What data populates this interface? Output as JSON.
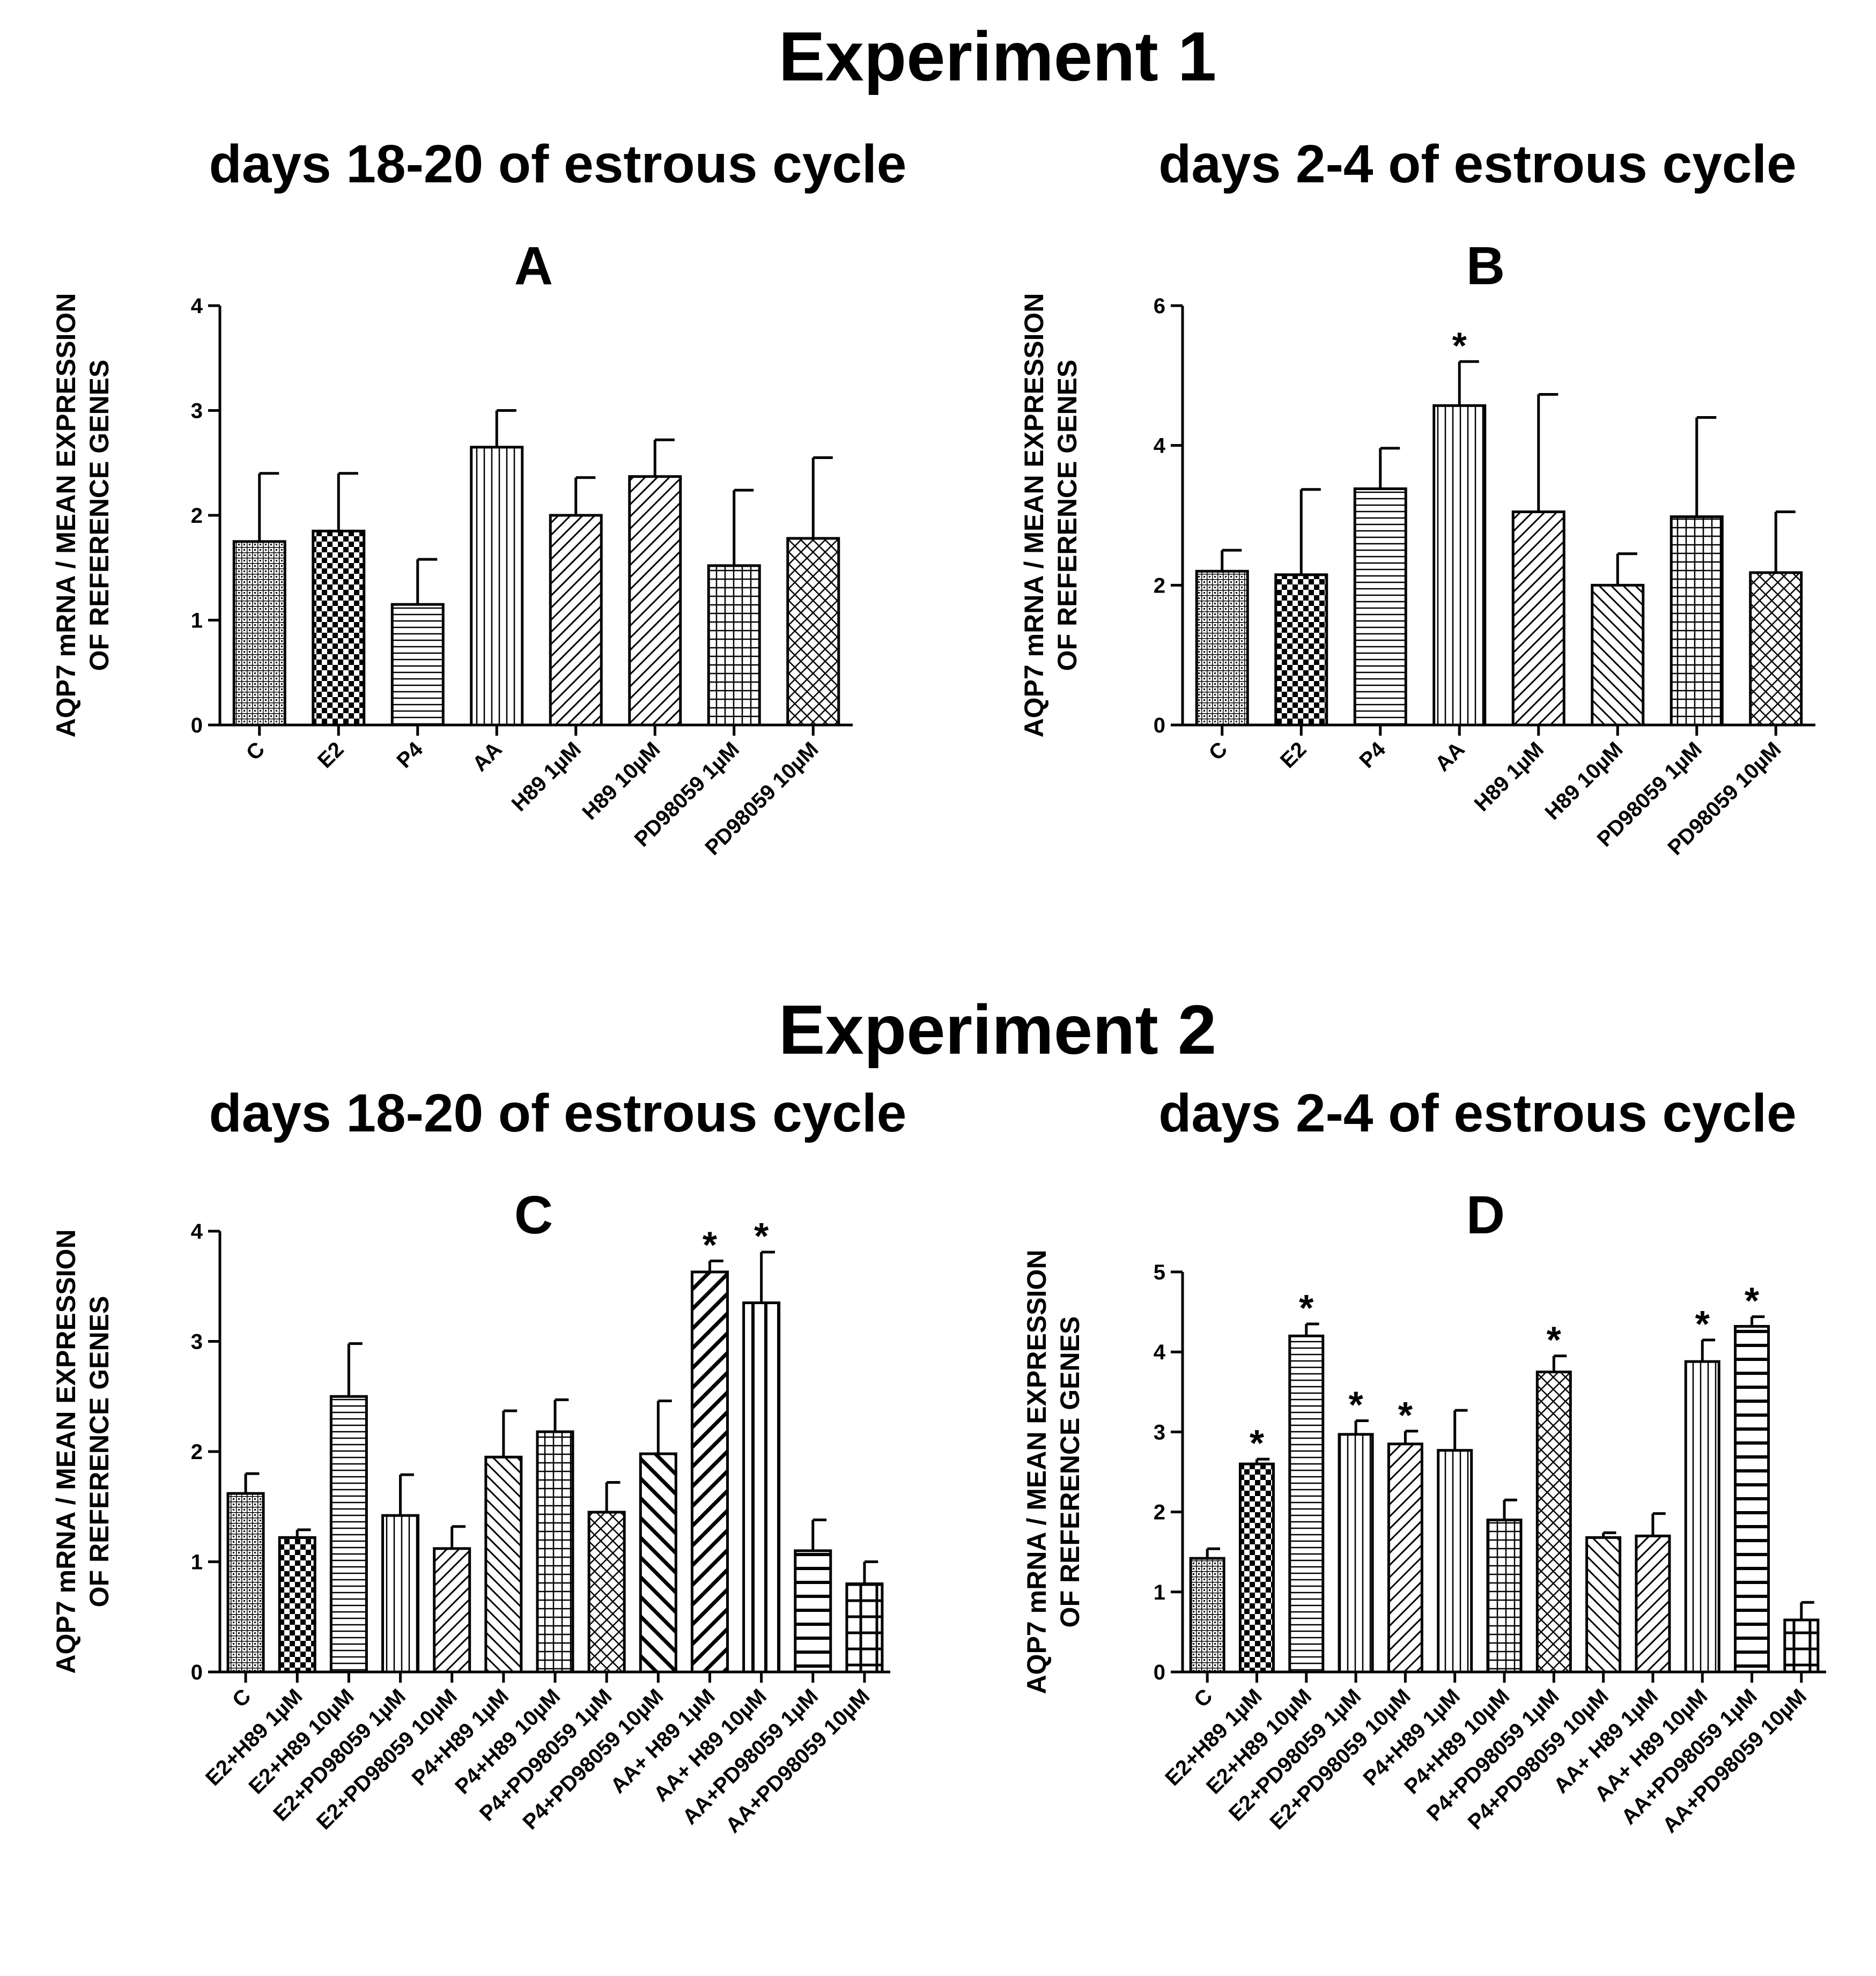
{
  "figure": {
    "experiments": [
      {
        "title": "Experiment 1",
        "phase_titles": [
          "days 18-20 of estrous cycle",
          "days 2-4 of estrous cycle"
        ]
      },
      {
        "title": "Experiment 2",
        "phase_titles": [
          "days 18-20 of estrous cycle",
          "days 2-4 of estrous cycle"
        ]
      }
    ]
  },
  "chart_data": [
    {
      "type": "bar",
      "title": "A",
      "ylabel": [
        "AQP7 mRNA / MEAN EXPRESSION",
        "OF REFERENCE GENES"
      ],
      "ylim": [
        0,
        4
      ],
      "yticks": [
        0,
        1,
        2,
        3,
        4
      ],
      "grid": false,
      "categories": [
        "C",
        "E2",
        "P4",
        "AA",
        "H89 1µM",
        "H89 10µM",
        "PD98059 1µM",
        "PD98059 10µM"
      ],
      "values": [
        1.75,
        1.85,
        1.15,
        2.65,
        2.0,
        2.37,
        1.52,
        1.78
      ],
      "errors": [
        0.65,
        0.55,
        0.43,
        0.35,
        0.36,
        0.35,
        0.72,
        0.77
      ],
      "significant": [
        false,
        false,
        false,
        false,
        false,
        false,
        false,
        false
      ],
      "patterns": [
        "p-fine-grid",
        "p-check",
        "p-horiz",
        "p-vert",
        "p-diag-up",
        "p-diag-up",
        "p-grid",
        "p-diag-grid"
      ]
    },
    {
      "type": "bar",
      "title": "B",
      "ylabel": [
        "AQP7 mRNA / MEAN EXPRESSION",
        "OF REFERENCE GENES"
      ],
      "ylim": [
        0,
        6
      ],
      "yticks": [
        0,
        2,
        4,
        6
      ],
      "grid": false,
      "categories": [
        "C",
        "E2",
        "P4",
        "AA",
        "H89 1µM",
        "H89 10µM",
        "PD98059 1µM",
        "PD98059 10µM"
      ],
      "values": [
        2.2,
        2.15,
        3.38,
        4.57,
        3.05,
        2.0,
        2.98,
        2.18
      ],
      "errors": [
        0.3,
        1.22,
        0.58,
        0.63,
        1.68,
        0.45,
        1.42,
        0.87
      ],
      "significant": [
        false,
        false,
        false,
        true,
        false,
        false,
        false,
        false
      ],
      "patterns": [
        "p-fine-grid",
        "p-check",
        "p-horiz",
        "p-vert",
        "p-diag-up",
        "p-diag-down",
        "p-grid",
        "p-diag-grid"
      ]
    },
    {
      "type": "bar",
      "title": "C",
      "ylabel": [
        "AQP7 mRNA / MEAN EXPRESSION",
        "OF REFERENCE GENES"
      ],
      "ylim": [
        0,
        4
      ],
      "yticks": [
        0,
        1,
        2,
        3,
        4
      ],
      "grid": false,
      "categories": [
        "C",
        "E2+H89 1µM",
        "E2+H89 10µM",
        "E2+PD98059 1µM",
        "E2+PD98059 10µM",
        "P4+H89 1µM",
        "P4+H89 10µM",
        "P4+PD98059 1µM",
        "P4+PD98059 10µM",
        "AA+ H89 1µM",
        "AA+ H89 10µM",
        "AA+PD98059 1µM",
        "AA+PD98059 10µM"
      ],
      "values": [
        1.62,
        1.22,
        2.5,
        1.42,
        1.12,
        1.95,
        2.18,
        1.45,
        1.98,
        3.63,
        3.35,
        1.1,
        0.8
      ],
      "errors": [
        0.18,
        0.07,
        0.48,
        0.37,
        0.2,
        0.42,
        0.29,
        0.27,
        0.48,
        0.1,
        0.46,
        0.28,
        0.2
      ],
      "significant": [
        false,
        false,
        false,
        false,
        false,
        false,
        false,
        false,
        false,
        true,
        true,
        false,
        false
      ],
      "patterns": [
        "p-fine-grid",
        "p-check",
        "p-horiz",
        "p-vert",
        "p-diag-up",
        "p-diag-down",
        "p-grid",
        "p-diag-grid",
        "p-diag-down-bold",
        "p-diag-up-bold",
        "p-vert-bold",
        "p-horiz-bold",
        "p-grid-bold"
      ]
    },
    {
      "type": "bar",
      "title": "D",
      "ylabel": [
        "AQP7 mRNA / MEAN EXPRESSION",
        "OF REFERENCE GENES"
      ],
      "ylim": [
        0,
        5
      ],
      "yticks": [
        0,
        1,
        2,
        3,
        4,
        5
      ],
      "grid": false,
      "categories": [
        "C",
        "E2+H89 1µM",
        "E2+H89 10µM",
        "E2+PD98059 1µM",
        "E2+PD98059 10µM",
        "P4+H89 1µM",
        "P4+H89 10µM",
        "P4+PD98059 1µM",
        "P4+PD98059 10µM",
        "AA+ H89 1µM",
        "AA+ H89 10µM",
        "AA+PD98059 1µM",
        "AA+PD98059 10µM"
      ],
      "values": [
        1.42,
        2.6,
        4.2,
        2.97,
        2.85,
        2.77,
        1.9,
        3.75,
        1.68,
        1.7,
        3.88,
        4.32,
        0.65
      ],
      "errors": [
        0.12,
        0.06,
        0.15,
        0.17,
        0.16,
        0.5,
        0.25,
        0.2,
        0.06,
        0.28,
        0.27,
        0.12,
        0.22
      ],
      "significant": [
        false,
        true,
        true,
        true,
        true,
        false,
        false,
        true,
        false,
        false,
        true,
        true,
        false
      ],
      "patterns": [
        "p-fine-grid",
        "p-check",
        "p-horiz",
        "p-vert",
        "p-diag-up",
        "p-vert",
        "p-grid",
        "p-diag-grid",
        "p-diag-down",
        "p-diag-up",
        "p-vert",
        "p-horiz-bold",
        "p-grid-bold"
      ]
    }
  ]
}
